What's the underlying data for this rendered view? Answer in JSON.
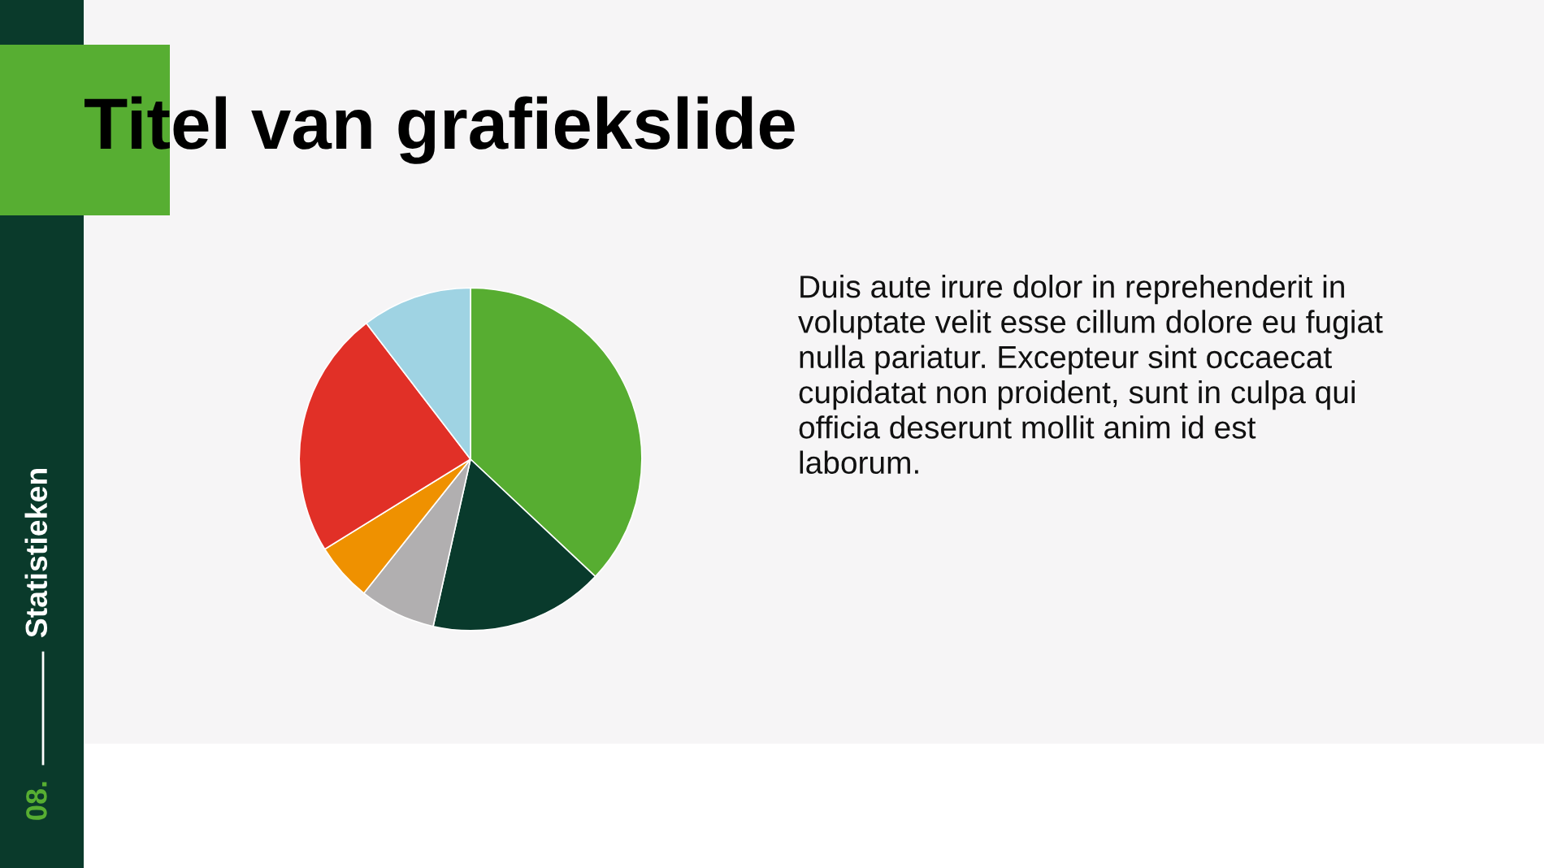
{
  "chart_data": {
    "type": "pie",
    "title": "Titel van grafiekslide",
    "categories": [
      null,
      null,
      null,
      null,
      null,
      null
    ],
    "values": [
      37,
      16.5,
      7.2,
      5.5,
      23.4,
      10.4
    ],
    "colors": [
      "#57ad31",
      "#093a2c",
      "#b1afb0",
      "#ef9100",
      "#e13027",
      "#9fd3e3"
    ],
    "annotations": [
      "Duis aute irure dolor in reprehenderit in voluptate velit esse cillum dolore eu fugiat nulla pariatur. Excepteur sint occaecat cupidatat non proident, sunt in culpa qui officia deserunt mollit anim id est laborum.",
      "Statistieken",
      "08."
    ]
  }
}
